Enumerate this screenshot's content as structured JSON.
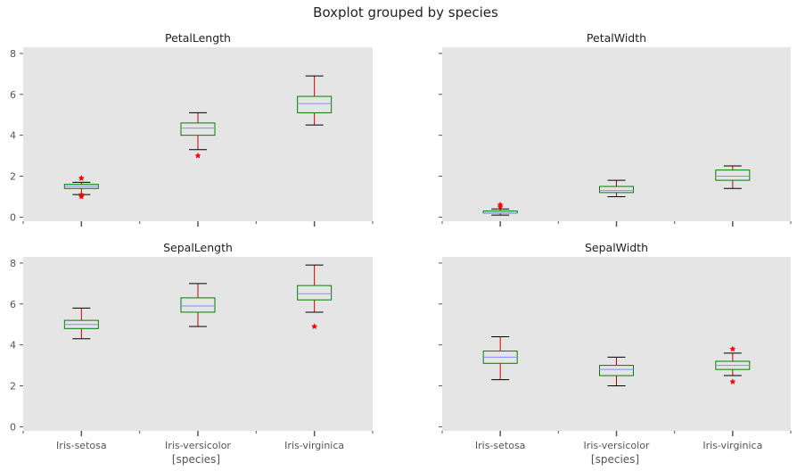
{
  "figure": {
    "suptitle": "Boxplot grouped by species",
    "xlabel": "[species]"
  },
  "colors": {
    "background": "#e5e5e5",
    "box": "#008000",
    "whisker": "#cc0000",
    "cap": "#000000",
    "median": "#8888ff",
    "flier": "#ff0000",
    "tick_text": "#555555"
  },
  "chart_data": {
    "type": "box",
    "categories": [
      "Iris-setosa",
      "Iris-versicolor",
      "Iris-virginica"
    ],
    "ylim": [
      -0.2,
      8.3
    ],
    "yticks": [
      0,
      2,
      4,
      6,
      8
    ],
    "grid": false,
    "panels": [
      {
        "title": "PetalLength",
        "boxes": [
          {
            "whislo": 1.1,
            "q1": 1.4,
            "med": 1.5,
            "q3": 1.6,
            "whishi": 1.7,
            "fliers": [
              1.0,
              1.1,
              1.9,
              1.9
            ]
          },
          {
            "whislo": 3.3,
            "q1": 4.0,
            "med": 4.35,
            "q3": 4.6,
            "whishi": 5.1,
            "fliers": [
              3.0
            ]
          },
          {
            "whislo": 4.5,
            "q1": 5.1,
            "med": 5.55,
            "q3": 5.9,
            "whishi": 6.9,
            "fliers": []
          }
        ]
      },
      {
        "title": "PetalWidth",
        "boxes": [
          {
            "whislo": 0.1,
            "q1": 0.2,
            "med": 0.2,
            "q3": 0.3,
            "whishi": 0.4,
            "fliers": [
              0.5,
              0.6
            ]
          },
          {
            "whislo": 1.0,
            "q1": 1.2,
            "med": 1.3,
            "q3": 1.5,
            "whishi": 1.8,
            "fliers": []
          },
          {
            "whislo": 1.4,
            "q1": 1.8,
            "med": 2.0,
            "q3": 2.3,
            "whishi": 2.5,
            "fliers": []
          }
        ]
      },
      {
        "title": "SepalLength",
        "boxes": [
          {
            "whislo": 4.3,
            "q1": 4.8,
            "med": 5.0,
            "q3": 5.2,
            "whishi": 5.8,
            "fliers": []
          },
          {
            "whislo": 4.9,
            "q1": 5.6,
            "med": 5.9,
            "q3": 6.3,
            "whishi": 7.0,
            "fliers": []
          },
          {
            "whislo": 5.6,
            "q1": 6.2,
            "med": 6.5,
            "q3": 6.9,
            "whishi": 7.9,
            "fliers": [
              4.9
            ]
          }
        ]
      },
      {
        "title": "SepalWidth",
        "boxes": [
          {
            "whislo": 2.3,
            "q1": 3.1,
            "med": 3.4,
            "q3": 3.7,
            "whishi": 4.4,
            "fliers": []
          },
          {
            "whislo": 2.0,
            "q1": 2.5,
            "med": 2.8,
            "q3": 3.0,
            "whishi": 3.4,
            "fliers": []
          },
          {
            "whislo": 2.5,
            "q1": 2.8,
            "med": 3.0,
            "q3": 3.2,
            "whishi": 3.6,
            "fliers": [
              3.8,
              2.2
            ]
          }
        ]
      }
    ]
  }
}
